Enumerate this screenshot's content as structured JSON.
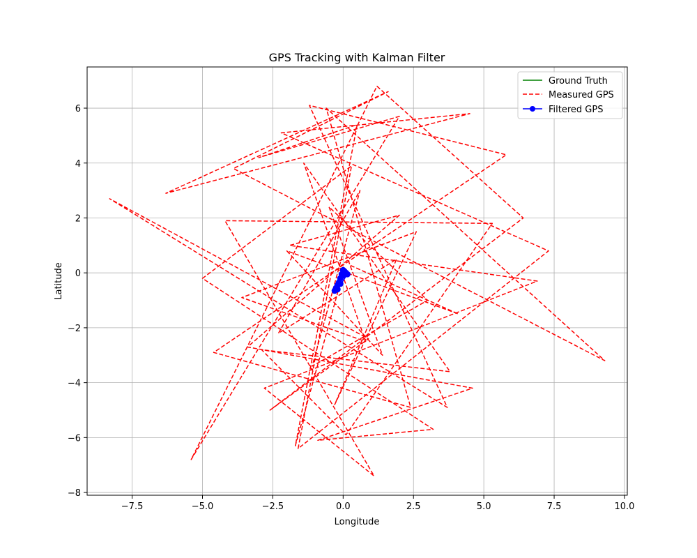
{
  "chart_data": {
    "type": "line",
    "title": "GPS Tracking with Kalman Filter",
    "xlabel": "Longitude",
    "ylabel": "Latitude",
    "xlim": [
      -9.1,
      10.1
    ],
    "ylim": [
      -8.1,
      7.5
    ],
    "xticks": [
      -7.5,
      -5.0,
      -2.5,
      0.0,
      2.5,
      5.0,
      7.5,
      10.0
    ],
    "xtick_labels": [
      "−7.5",
      "−5.0",
      "−2.5",
      "0.0",
      "2.5",
      "5.0",
      "7.5",
      "10.0"
    ],
    "yticks": [
      -8,
      -6,
      -4,
      -2,
      0,
      2,
      4,
      6
    ],
    "ytick_labels": [
      "−8",
      "−6",
      "−4",
      "−2",
      "0",
      "2",
      "4",
      "6"
    ],
    "grid": true,
    "legend_position": "top-right",
    "colors": {
      "ground_truth": "#008000",
      "measured": "#ff0000",
      "filtered": "#0000ff"
    },
    "series": [
      {
        "name": "Ground Truth",
        "style": "solid",
        "x": [
          0.0,
          0.02,
          0.04,
          0.06,
          0.08,
          0.1
        ],
        "y": [
          0.0,
          0.02,
          0.04,
          0.06,
          0.08,
          0.1
        ]
      },
      {
        "name": "Measured GPS",
        "style": "dashed",
        "x": [
          0.0,
          -1.7,
          0.5,
          -3.0,
          2.0,
          -5.4,
          1.2,
          6.4,
          -2.6,
          0.9,
          -8.3,
          3.7,
          -1.2,
          5.8,
          -4.6,
          2.4,
          -0.6,
          9.3,
          -3.9,
          1.6,
          -6.3,
          4.5,
          -2.2,
          7.3,
          -1.6,
          0.3,
          -5.0,
          3.2,
          -0.9,
          4.6,
          -3.4,
          2.0,
          -1.9,
          6.9,
          -2.8,
          1.1,
          -4.2,
          5.3,
          0.1,
          -2.9,
          3.8,
          -1.4,
          0.8,
          -3.6,
          2.6,
          -0.3,
          1.9,
          -2.3,
          0.6,
          -1.1,
          3.0,
          -0.5,
          1.4,
          -2.0,
          4.1,
          0.2
        ],
        "y": [
          0.0,
          -6.3,
          5.4,
          4.2,
          5.7,
          -6.8,
          6.8,
          2.0,
          -5.0,
          -2.4,
          2.7,
          -4.9,
          6.1,
          4.3,
          -2.9,
          -4.9,
          6.0,
          -3.2,
          3.8,
          6.6,
          2.9,
          5.8,
          5.1,
          0.8,
          -6.4,
          3.9,
          -0.2,
          -5.7,
          -6.1,
          -4.2,
          -2.7,
          2.1,
          1.0,
          -0.3,
          -4.2,
          -7.4,
          1.9,
          1.8,
          -5.9,
          -2.8,
          -3.6,
          4.0,
          -2.5,
          -0.9,
          1.5,
          -4.8,
          0.5,
          -2.2,
          3.0,
          -3.4,
          -1.0,
          2.4,
          -3.0,
          0.8,
          -1.5,
          0.3
        ]
      },
      {
        "name": "Filtered GPS",
        "style": "solid-marker",
        "x": [
          -0.3,
          -0.25,
          -0.2,
          -0.15,
          -0.1,
          -0.05,
          0.0,
          0.05,
          0.1,
          0.15,
          -0.2,
          -0.1,
          0.0
        ],
        "y": [
          -0.65,
          -0.55,
          -0.45,
          -0.35,
          -0.2,
          -0.05,
          0.1,
          0.05,
          0.0,
          -0.05,
          -0.6,
          -0.4,
          -0.1
        ]
      }
    ]
  }
}
